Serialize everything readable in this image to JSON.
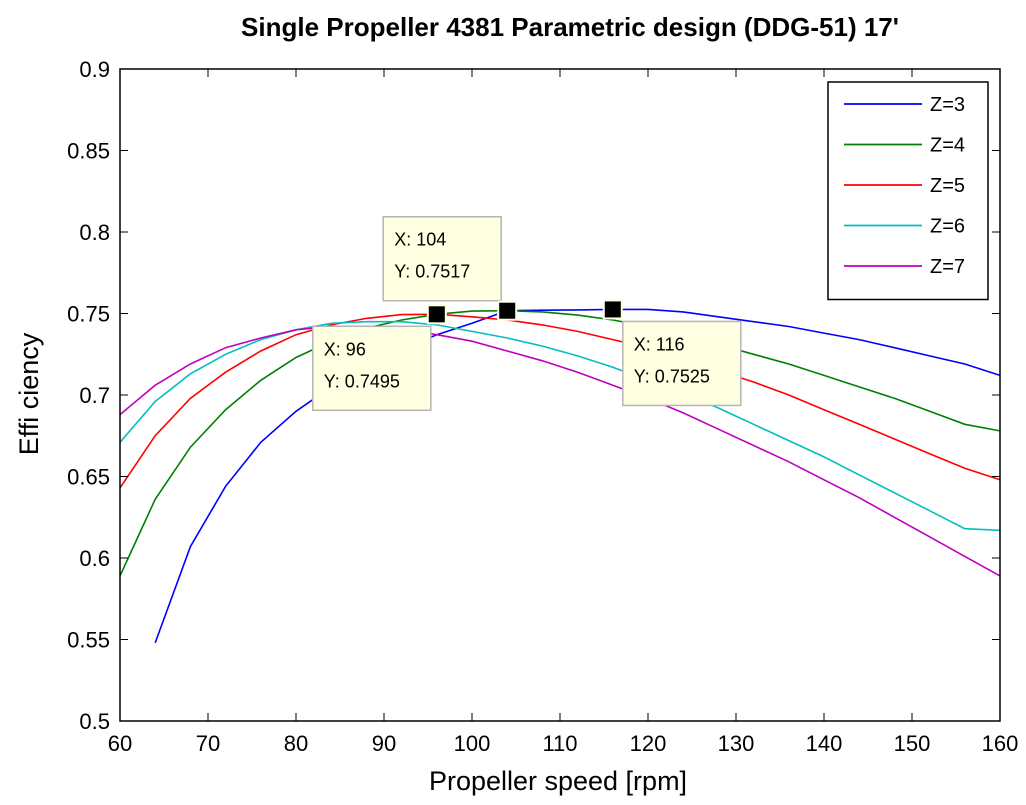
{
  "chart_data": {
    "type": "line",
    "title": "Single Propeller 4381 Parametric design (DDG-51) 17'",
    "xlabel": "Propeller speed [rpm]",
    "ylabel": "Effi ciency",
    "xlim": [
      60,
      160
    ],
    "ylim": [
      0.5,
      0.9
    ],
    "xticks": [
      "60",
      "70",
      "80",
      "90",
      "100",
      "110",
      "120",
      "130",
      "140",
      "150",
      "160"
    ],
    "yticks": [
      "0.5",
      "0.55",
      "0.6",
      "0.65",
      "0.7",
      "0.75",
      "0.8",
      "0.85",
      "0.9"
    ],
    "grid": false,
    "legend_position": "top-right",
    "series": [
      {
        "name": "Z=3",
        "color": "#0000ff",
        "x": [
          64,
          68,
          72,
          76,
          80,
          84,
          88,
          92,
          96,
          100,
          104,
          108,
          112,
          116,
          120,
          124,
          128,
          132,
          136,
          140,
          144,
          148,
          152,
          156,
          160
        ],
        "y": [
          0.548,
          0.607,
          0.644,
          0.671,
          0.69,
          0.705,
          0.718,
          0.728,
          0.737,
          0.744,
          0.7517,
          0.752,
          0.7522,
          0.7525,
          0.7525,
          0.751,
          0.748,
          0.745,
          0.742,
          0.738,
          0.734,
          0.729,
          0.724,
          0.719,
          0.712
        ]
      },
      {
        "name": "Z=4",
        "color": "#008000",
        "x": [
          60,
          64,
          68,
          72,
          76,
          80,
          84,
          88,
          92,
          96,
          100,
          104,
          108,
          112,
          116,
          120,
          124,
          128,
          132,
          136,
          140,
          144,
          148,
          152,
          156,
          160
        ],
        "y": [
          0.589,
          0.636,
          0.668,
          0.691,
          0.709,
          0.723,
          0.733,
          0.741,
          0.746,
          0.7495,
          0.7515,
          0.7517,
          0.751,
          0.749,
          0.746,
          0.742,
          0.737,
          0.731,
          0.725,
          0.719,
          0.712,
          0.705,
          0.698,
          0.69,
          0.682,
          0.678
        ]
      },
      {
        "name": "Z=5",
        "color": "#ff0000",
        "x": [
          60,
          64,
          68,
          72,
          76,
          80,
          84,
          88,
          92,
          96,
          100,
          104,
          108,
          112,
          116,
          120,
          124,
          128,
          132,
          136,
          140,
          144,
          148,
          152,
          156,
          160
        ],
        "y": [
          0.643,
          0.675,
          0.698,
          0.714,
          0.727,
          0.737,
          0.743,
          0.747,
          0.7493,
          0.7495,
          0.748,
          0.746,
          0.743,
          0.739,
          0.734,
          0.729,
          0.722,
          0.715,
          0.708,
          0.7,
          0.691,
          0.682,
          0.673,
          0.664,
          0.655,
          0.648
        ]
      },
      {
        "name": "Z=6",
        "color": "#00bfbf",
        "x": [
          60,
          64,
          68,
          72,
          76,
          80,
          84,
          88,
          92,
          96,
          100,
          104,
          108,
          112,
          116,
          120,
          124,
          128,
          132,
          136,
          140,
          144,
          148,
          152,
          156,
          160
        ],
        "y": [
          0.671,
          0.696,
          0.713,
          0.725,
          0.734,
          0.74,
          0.744,
          0.745,
          0.745,
          0.743,
          0.739,
          0.735,
          0.73,
          0.724,
          0.717,
          0.709,
          0.701,
          0.692,
          0.682,
          0.672,
          0.662,
          0.651,
          0.64,
          0.629,
          0.618,
          0.617
        ]
      },
      {
        "name": "Z=7",
        "color": "#bf00bf",
        "x": [
          60,
          64,
          68,
          72,
          76,
          80,
          84,
          88,
          92,
          96,
          100,
          104,
          108,
          112,
          116,
          120,
          124,
          128,
          132,
          136,
          140,
          144,
          148,
          152,
          156,
          160
        ],
        "y": [
          0.688,
          0.706,
          0.719,
          0.729,
          0.735,
          0.74,
          0.742,
          0.742,
          0.74,
          0.737,
          0.733,
          0.727,
          0.721,
          0.714,
          0.706,
          0.698,
          0.689,
          0.679,
          0.669,
          0.659,
          0.648,
          0.637,
          0.625,
          0.613,
          0.601,
          0.589
        ]
      }
    ],
    "datatips": [
      {
        "x": 104,
        "y": 0.7517,
        "label_x": "X: 104",
        "label_y": "Y: 0.7517",
        "box": "top-left"
      },
      {
        "x": 96,
        "y": 0.7495,
        "label_x": "X: 96",
        "label_y": "Y: 0.7495",
        "box": "bottom-left"
      },
      {
        "x": 116,
        "y": 0.7525,
        "label_x": "X: 116",
        "label_y": "Y: 0.7525",
        "box": "bottom-right"
      }
    ]
  }
}
